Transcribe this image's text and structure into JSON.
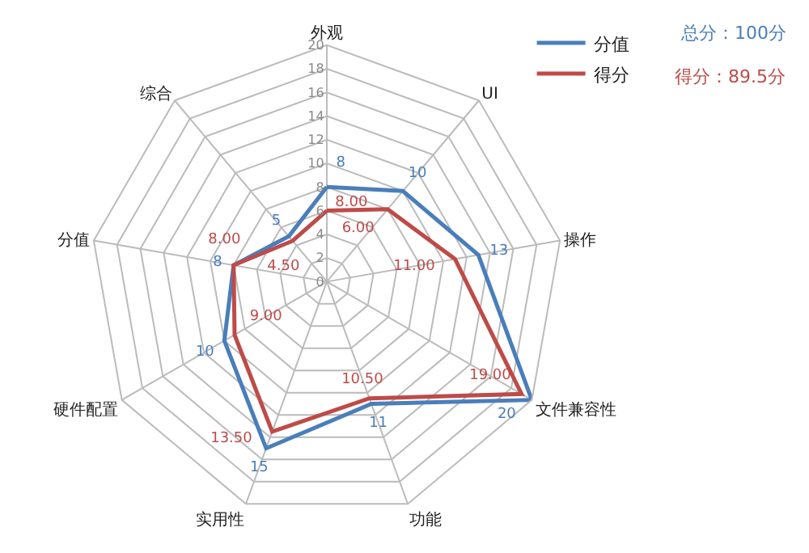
{
  "chart_data": {
    "type": "radar",
    "categories": [
      "外观",
      "UI",
      "操作",
      "文件兼容性",
      "功能",
      "实用性",
      "硬件配置",
      "分值",
      "综合"
    ],
    "series": [
      {
        "name": "分值",
        "color": "#4a7ebb",
        "values": [
          8,
          10,
          13,
          20,
          11,
          15,
          10,
          8,
          5
        ],
        "value_labels": [
          "8",
          "10",
          "13",
          "20",
          "11",
          "15",
          "10",
          "8",
          "5"
        ]
      },
      {
        "name": "得分",
        "color": "#be4b48",
        "values": [
          6,
          8,
          11,
          19,
          10.5,
          13.5,
          9,
          8,
          4.5
        ],
        "value_labels": [
          "6.00",
          "8.00",
          "11.00",
          "19.00",
          "10.50",
          "13.50",
          "9.00",
          "8.00",
          "4.50"
        ]
      }
    ],
    "ylim": [
      0,
      20
    ],
    "yticks": [
      0,
      2,
      4,
      6,
      8,
      10,
      12,
      14,
      16,
      18,
      20
    ],
    "grid": true,
    "legend": "top right",
    "annotations": [
      "总分：100分",
      "得分：89.5分"
    ]
  }
}
